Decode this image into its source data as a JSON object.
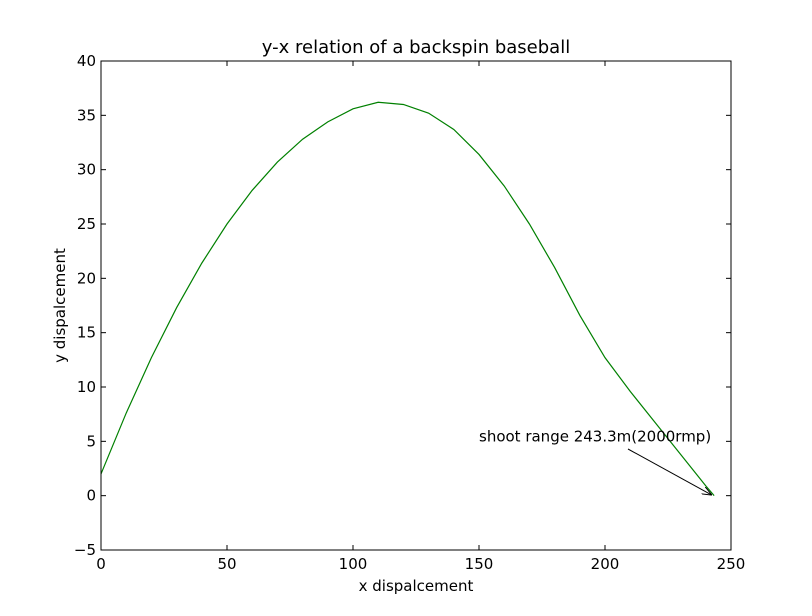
{
  "chart_data": {
    "type": "line",
    "title": "y-x relation of a backspin baseball",
    "xlabel": "x dispalcement",
    "ylabel": "y dispalcement",
    "xlim": [
      0,
      250
    ],
    "ylim": [
      -5,
      40
    ],
    "xticks": [
      0,
      50,
      100,
      150,
      200,
      250
    ],
    "yticks": [
      -5,
      0,
      5,
      10,
      15,
      20,
      25,
      30,
      35,
      40
    ],
    "xtick_labels": [
      "0",
      "50",
      "100",
      "150",
      "200",
      "250"
    ],
    "ytick_labels": [
      "−5",
      "0",
      "5",
      "10",
      "15",
      "20",
      "25",
      "30",
      "35",
      "40"
    ],
    "grid": false,
    "legend": null,
    "series": [
      {
        "color": "#008000",
        "x": [
          0,
          10,
          20,
          30,
          40,
          50,
          60,
          70,
          80,
          90,
          100,
          110,
          120,
          130,
          140,
          150,
          160,
          170,
          180,
          190,
          200,
          210,
          220,
          230,
          240,
          243.3
        ],
        "y": [
          2,
          7.6,
          12.7,
          17.3,
          21.4,
          25.0,
          28.1,
          30.7,
          32.8,
          34.4,
          35.6,
          36.2,
          36.0,
          35.2,
          33.7,
          31.4,
          28.5,
          25.0,
          21.0,
          16.6,
          12.7,
          9.6,
          6.7,
          3.8,
          0.9,
          0
        ]
      }
    ],
    "annotations": [
      {
        "text": "shoot range 243.3m(2000rmp)",
        "xytext": [
          150,
          5
        ],
        "xy": [
          243.3,
          0
        ]
      }
    ]
  }
}
